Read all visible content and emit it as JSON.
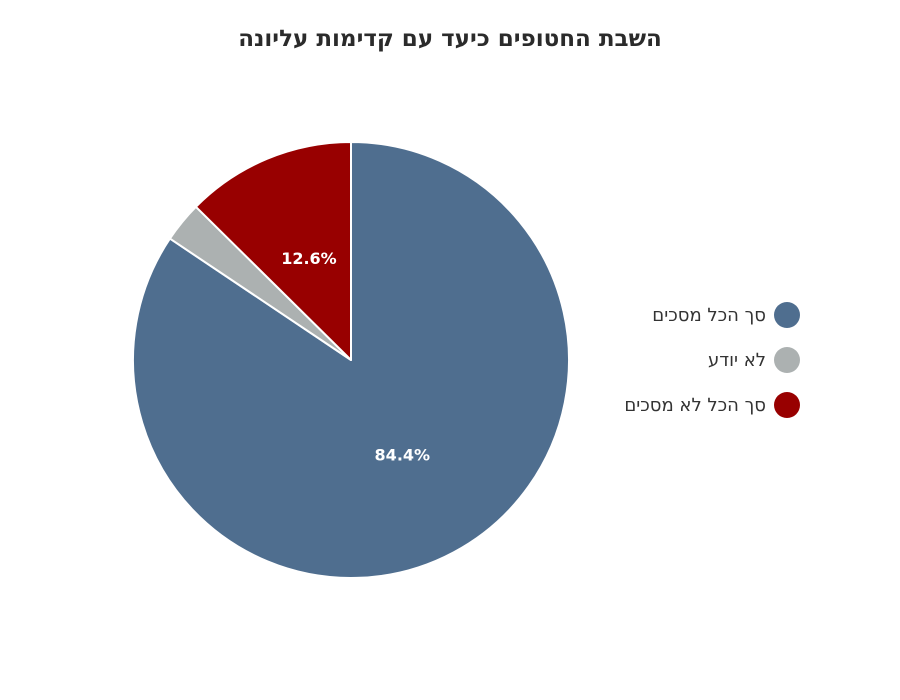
{
  "chart_data": {
    "type": "pie",
    "title": "השבת החטופים כיעד עם קדימות עליונה",
    "slices": [
      {
        "label": "סך הכל מסכים",
        "value": 84.4,
        "value_label": "84.4%",
        "color": "#4f6e8f"
      },
      {
        "label": "לא יודע",
        "value": 3.0,
        "value_label": "",
        "color": "#acb1b1"
      },
      {
        "label": "סך הכל לא מסכים",
        "value": 12.6,
        "value_label": "12.6%",
        "color": "#980000"
      }
    ],
    "start_angle_deg": 0,
    "direction": "clockwise",
    "legend_position": "right"
  }
}
